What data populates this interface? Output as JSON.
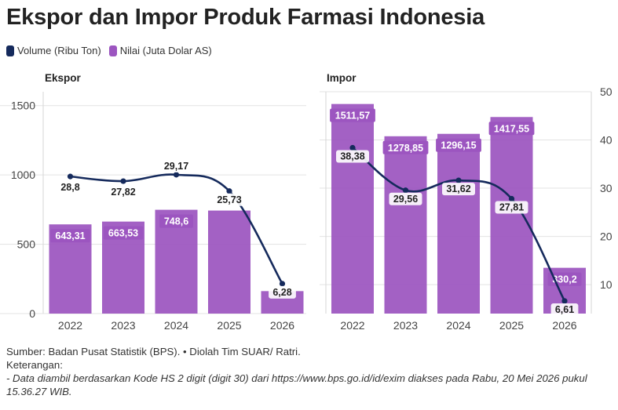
{
  "title": "Ekspor dan Impor Produk Farmasi Indonesia",
  "legend": {
    "volume": "Volume (Ribu Ton)",
    "nilai": "Nilai (Juta Dolar AS)"
  },
  "colors": {
    "volume": "#152a5c",
    "nilai": "#9c55c0"
  },
  "chart_data": [
    {
      "type": "bar",
      "panel": "Ekspor",
      "categories": [
        "2022",
        "2023",
        "2024",
        "2025",
        "2026"
      ],
      "series": [
        {
          "name": "Nilai (Juta Dolar AS)",
          "kind": "bar",
          "values": [
            643.31,
            663.53,
            748.6,
            743,
            162
          ],
          "labels": [
            "643,31",
            "663,53",
            "748,6",
            "",
            ""
          ]
        },
        {
          "name": "Volume (Ribu Ton)",
          "kind": "line",
          "values": [
            28.8,
            27.82,
            29.17,
            25.73,
            6.28
          ],
          "labels": [
            "28,8",
            "27,82",
            "29,17",
            "25,73",
            "6,28"
          ]
        }
      ],
      "ylim": [
        0,
        1600
      ],
      "yticks": [
        "0",
        "500",
        "1000",
        "1500"
      ],
      "ytick_values": [
        0,
        500,
        1000,
        1500
      ],
      "y2lim": [
        0,
        55
      ]
    },
    {
      "type": "bar",
      "panel": "Impor",
      "categories": [
        "2022",
        "2023",
        "2024",
        "2025",
        "2026"
      ],
      "series": [
        {
          "name": "Nilai (Juta Dolar AS)",
          "kind": "bar",
          "values": [
            1511.57,
            1278.85,
            1296.15,
            1417.55,
            330.2
          ],
          "labels": [
            "1511,57",
            "1278,85",
            "1296,15",
            "1417,55",
            "330,2"
          ]
        },
        {
          "name": "Volume (Ribu Ton)",
          "kind": "line",
          "values": [
            38.38,
            29.56,
            31.62,
            27.81,
            6.61
          ],
          "labels": [
            "38,38",
            "29,56",
            "31,62",
            "27,81",
            "6,61"
          ]
        }
      ],
      "ylim": [
        0,
        1600
      ],
      "y2lim": [
        4,
        50
      ],
      "y2ticks": [
        "10",
        "20",
        "30",
        "40",
        "50"
      ],
      "y2tick_values": [
        10,
        20,
        30,
        40,
        50
      ]
    }
  ],
  "footer": {
    "source": "Sumber: Badan Pusat Statistik (BPS). • Diolah Tim SUAR/ Ratri.",
    "notes_heading": "Keterangan:",
    "note": "- Data diambil berdasarkan Kode HS 2 digit (digit 30) dari https://www.bps.go.id/id/exim diakses pada Rabu, 20 Mei 2026 pukul 15.36.27 WIB."
  }
}
